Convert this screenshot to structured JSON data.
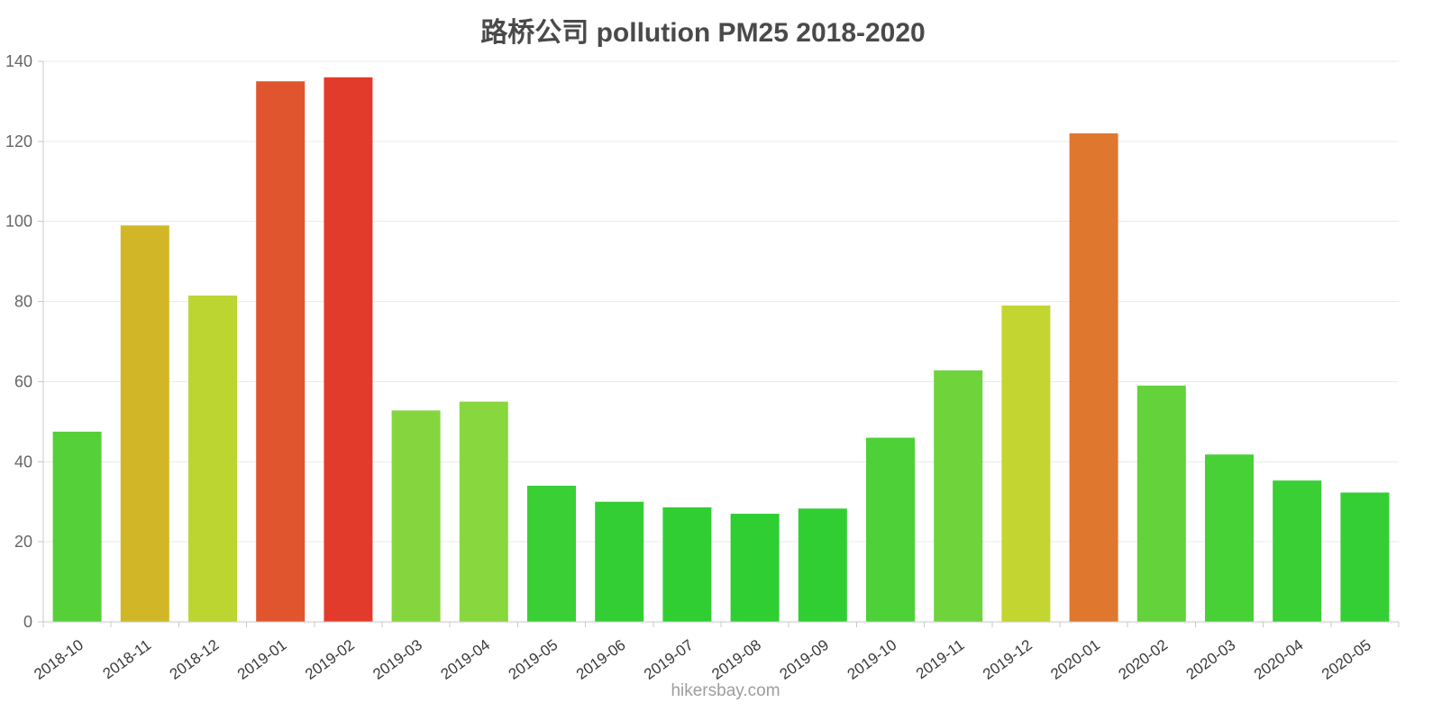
{
  "chart_data": {
    "type": "bar",
    "title": "路桥公司 pollution PM25 2018-2020",
    "categories": [
      "2018-10",
      "2018-11",
      "2018-12",
      "2019-01",
      "2019-02",
      "2019-03",
      "2019-04",
      "2019-05",
      "2019-06",
      "2019-07",
      "2019-08",
      "2019-09",
      "2019-10",
      "2019-11",
      "2019-12",
      "2020-01",
      "2020-02",
      "2020-03",
      "2020-04",
      "2020-05"
    ],
    "values": [
      47.5,
      99,
      81.5,
      135,
      136,
      52.8,
      55,
      34,
      30,
      28.6,
      27,
      28.3,
      46,
      62.8,
      79,
      122,
      59,
      41.8,
      35.3,
      32.3
    ],
    "bar_colors": [
      "#56d039",
      "#d1b728",
      "#bcd531",
      "#e0552e",
      "#e23b2b",
      "#85d63e",
      "#88d73e",
      "#3bcf36",
      "#33ce33",
      "#31ce33",
      "#2fce33",
      "#31ce33",
      "#4ed038",
      "#6fd43c",
      "#c3d530",
      "#e0772e",
      "#63d23b",
      "#48d037",
      "#39cf35",
      "#34cf34"
    ],
    "xlabel": "",
    "ylabel": "",
    "ylim": [
      0,
      140
    ],
    "yticks": [
      0,
      20,
      40,
      60,
      80,
      100,
      120,
      140
    ],
    "grid": "horizontal",
    "legend": "none"
  },
  "footer": {
    "text": "hikersbay.com"
  }
}
